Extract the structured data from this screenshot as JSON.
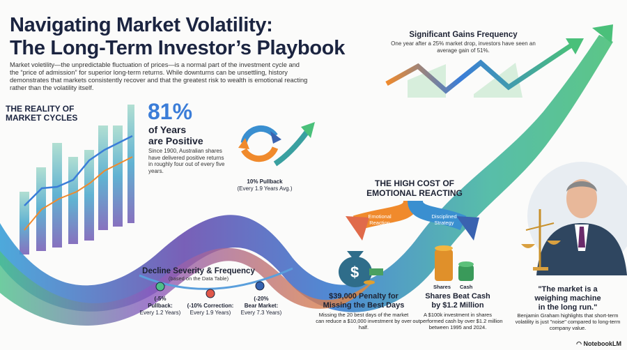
{
  "header": {
    "title_line1": "Navigating Market Volatility:",
    "title_line2": "The Long-Term Investor’s Playbook",
    "intro": "Market voletility—the unpredictable fluctuation of prices—is a normal part of the investment cycle and the “price of admission” for superior long-term returns. While downturns can be unsettling, history demonstrates that markets consistently recover and that the greatest risk to wealth is emotional reacting rather than the volatility itself."
  },
  "cycles": {
    "title_line1": "THE REALITY OF",
    "title_line2": "MARKET CYCLES",
    "stat": "81%",
    "stat_label_line1": "of Years",
    "stat_label_line2": "are Positive",
    "description": "Since 1900, Australian shares have delivered positive returns in roughly four out of every five years."
  },
  "pullback": {
    "title": "10% Pullback",
    "subtitle": "(Every 1.9 Years Avg.)"
  },
  "gains": {
    "title": "Significant Gains Frequency",
    "description": "One year after a 25% market drop, investors have seen an average gain of 51%."
  },
  "decline": {
    "title": "Decline Severity & Frequency",
    "subtitle": "(based on the Data Table)",
    "points": [
      {
        "line1": "(-5%",
        "line2": "Pullback:",
        "line3": "Every 1.2 Years)",
        "color": "#4fbf8a"
      },
      {
        "line1": "",
        "line2": "(-10% Correction:",
        "line3": "Every 1.9 Years)",
        "color": "#e0584a"
      },
      {
        "line1": "(-20%",
        "line2": "Bear Market:",
        "line3": "Every 7.3 Years)",
        "color": "#3563b0"
      }
    ]
  },
  "cost": {
    "title_line1": "THE HIGH COST OF",
    "title_line2": "EMOTIONAL REACTING",
    "left_arrow_line1": "Emotional",
    "left_arrow_line2": "Reaction",
    "right_arrow_line1": "Disciplined",
    "right_arrow_line2": "Strategy",
    "left": {
      "title_line1": "$39,000 Penalty for",
      "title_line2": "Missing the Best Days",
      "description": "Missing the 20 best days of the market can reduce a $10,000 investment by over half."
    },
    "right": {
      "label_shares": "Shares",
      "label_cash": "Cash",
      "title_line1": "Shares Beat Cash",
      "title_line2": "by $1.2 Million",
      "description": "A $100k investment in shares outperformed cash by over $1.2 million between 1995 and 2024."
    }
  },
  "quote": {
    "text_line1": "\"The market is a",
    "text_line2": "weighing machine",
    "text_line3": "in the long run.\"",
    "description": "Benjamin Graham highlights that short-term volatility is just \"noise\" compared to long-term company value."
  },
  "brand": "NotebookLM",
  "colors": {
    "navy": "#1b2440",
    "blue": "#3b7dd8",
    "orange": "#f08a2c",
    "green": "#4fbf8a",
    "purple": "#7a4fb0"
  }
}
